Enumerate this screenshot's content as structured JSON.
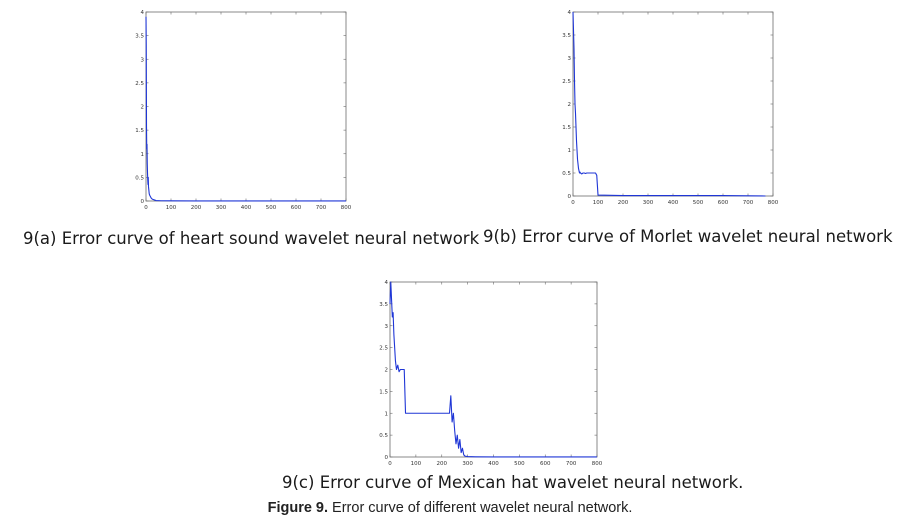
{
  "figure": {
    "caption_label": "Figure 9.",
    "caption_text": " Error curve of different wavelet neural network."
  },
  "colors": {
    "line": "#1f36d6",
    "axis": "#6b6b6b",
    "tick": "#333333"
  },
  "chart_data": [
    {
      "type": "line",
      "panel": "a",
      "caption": "9(a) Error curve of heart sound wavelet neural network",
      "xlim": [
        0,
        800
      ],
      "ylim": [
        0,
        4
      ],
      "xticks": [
        0,
        100,
        200,
        300,
        400,
        500,
        600,
        700,
        800
      ],
      "xtick_labels": [
        "0",
        "100",
        "200",
        "300",
        "400",
        "500",
        "600",
        "700",
        "800"
      ],
      "yticks": [
        0,
        0.5,
        1,
        1.5,
        2,
        2.5,
        3,
        3.5,
        4
      ],
      "ytick_labels": [
        "0",
        "0.5",
        "1",
        "1.5",
        "2",
        "2.5",
        "3",
        "3.5",
        "4"
      ],
      "series": [
        {
          "x": [
            0,
            1,
            2,
            3,
            4,
            5,
            6,
            7,
            8,
            9,
            10,
            11,
            12,
            13,
            15,
            17,
            19,
            21,
            25,
            30,
            35,
            40,
            60,
            100,
            200,
            400,
            800
          ],
          "y": [
            3.9,
            3.3,
            1.6,
            1.1,
            1.2,
            0.8,
            0.6,
            0.45,
            0.35,
            0.5,
            0.3,
            0.25,
            0.2,
            0.15,
            0.12,
            0.1,
            0.08,
            0.06,
            0.04,
            0.03,
            0.02,
            0.01,
            0.005,
            0.003,
            0.002,
            0.001,
            0.001
          ]
        }
      ]
    },
    {
      "type": "line",
      "panel": "b",
      "caption": "9(b) Error curve of Morlet wavelet neural network",
      "xlim": [
        0,
        800
      ],
      "ylim": [
        0,
        4
      ],
      "xticks": [
        0,
        100,
        200,
        300,
        400,
        500,
        600,
        700,
        800
      ],
      "xtick_labels": [
        "0",
        "100",
        "200",
        "300",
        "400",
        "500",
        "600",
        "700",
        "800"
      ],
      "yticks": [
        0,
        0.5,
        1,
        1.5,
        2,
        2.5,
        3,
        3.5,
        4
      ],
      "ytick_labels": [
        "0",
        "0.5",
        "1",
        "1.5",
        "2",
        "2.5",
        "3",
        "3.5",
        "4"
      ],
      "series": [
        {
          "x": [
            0,
            2,
            4,
            6,
            8,
            10,
            12,
            14,
            16,
            18,
            20,
            22,
            24,
            26,
            28,
            30,
            35,
            40,
            45,
            50,
            55,
            60,
            90,
            95,
            100,
            200,
            400,
            600,
            770
          ],
          "y": [
            4.0,
            3.6,
            3.2,
            2.5,
            2.0,
            1.8,
            1.5,
            1.2,
            1.0,
            0.8,
            0.7,
            0.6,
            0.55,
            0.5,
            0.52,
            0.5,
            0.48,
            0.5,
            0.5,
            0.49,
            0.5,
            0.5,
            0.5,
            0.45,
            0.02,
            0.01,
            0.01,
            0.01,
            0.0
          ]
        }
      ]
    },
    {
      "type": "line",
      "panel": "c",
      "caption": "9(c) Error curve of Mexican hat wavelet  neural network.",
      "xlim": [
        0,
        800
      ],
      "ylim": [
        0,
        4
      ],
      "xticks": [
        0,
        100,
        200,
        300,
        400,
        500,
        600,
        700,
        800
      ],
      "xtick_labels": [
        "0",
        "100",
        "200",
        "300",
        "400",
        "500",
        "600",
        "700",
        "800"
      ],
      "yticks": [
        0,
        0.5,
        1,
        1.5,
        2,
        2.5,
        3,
        3.5,
        4
      ],
      "ytick_labels": [
        "0",
        "0.5",
        "1",
        "1.5",
        "2",
        "2.5",
        "3",
        "3.5",
        "4"
      ],
      "series": [
        {
          "x": [
            0,
            3,
            6,
            9,
            12,
            15,
            18,
            21,
            25,
            30,
            35,
            40,
            45,
            50,
            55,
            60,
            80,
            120,
            200,
            230,
            235,
            240,
            245,
            250,
            255,
            260,
            265,
            270,
            275,
            280,
            285,
            290,
            300,
            330,
            400,
            600,
            800
          ],
          "y": [
            3.5,
            4.0,
            3.6,
            3.2,
            3.3,
            2.8,
            2.5,
            2.2,
            2.0,
            2.1,
            1.95,
            2.0,
            2.0,
            2.0,
            2.0,
            1.0,
            1.0,
            1.0,
            1.0,
            1.0,
            1.4,
            0.8,
            1.0,
            0.6,
            0.3,
            0.5,
            0.2,
            0.4,
            0.1,
            0.2,
            0.05,
            0.02,
            0.01,
            0.005,
            0.002,
            0.001,
            0.001
          ]
        }
      ]
    }
  ]
}
